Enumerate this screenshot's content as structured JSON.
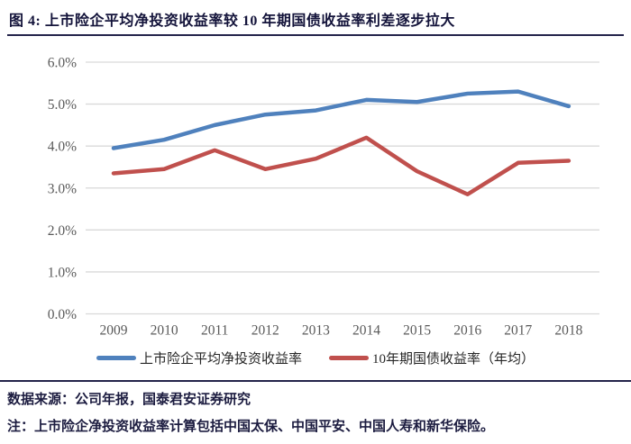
{
  "title": "图 4:  上市险企平均净投资收益率较 10 年期国债收益率利差逐步拉大",
  "source_line": "数据来源：公司年报，国泰君安证券研究",
  "note_line": "注：上市险企净投资收益率计算包括中国太保、中国平安、中国人寿和新华保险。",
  "colors": {
    "series1": "#4F81BD",
    "series2": "#C0504D",
    "grid": "#D9D9D9",
    "axis_text": "#595959",
    "title_text": "#13133A",
    "rule": "#23234A",
    "background": "#FFFFFF"
  },
  "chart_data": {
    "type": "line",
    "title": "",
    "xlabel": "",
    "ylabel": "",
    "categories": [
      "2009",
      "2010",
      "2011",
      "2012",
      "2013",
      "2014",
      "2015",
      "2016",
      "2017",
      "2018"
    ],
    "series": [
      {
        "name": "上市险企平均净投资收益率",
        "color": "#4F81BD",
        "values": [
          3.95,
          4.15,
          4.5,
          4.75,
          4.85,
          5.1,
          5.05,
          5.25,
          5.3,
          4.95
        ]
      },
      {
        "name": "10年期国债收益率（年均）",
        "color": "#C0504D",
        "values": [
          3.35,
          3.45,
          3.9,
          3.45,
          3.7,
          4.2,
          3.4,
          2.85,
          3.6,
          3.65
        ]
      }
    ],
    "ylim": [
      0,
      6
    ],
    "ytick_step": 1,
    "yticks": [
      "0.0%",
      "1.0%",
      "2.0%",
      "3.0%",
      "4.0%",
      "5.0%",
      "6.0%"
    ],
    "grid": true,
    "legend_position": "bottom"
  }
}
